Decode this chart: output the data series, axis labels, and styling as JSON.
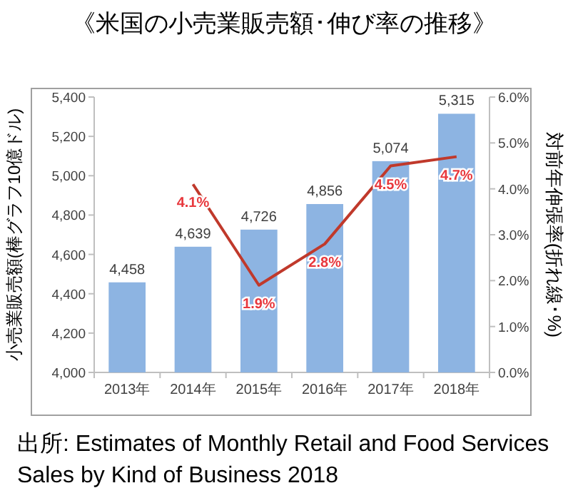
{
  "chart_data": {
    "type": "bar",
    "title": "《米国の小売業販売額･伸び率の推移》",
    "ylabel": "小売業販売額(棒グラフ10億ドル)",
    "y2label": "対前年伸張率(折れ線･%)",
    "categories": [
      "2013年",
      "2014年",
      "2015年",
      "2016年",
      "2017年",
      "2018年"
    ],
    "series": [
      {
        "color": "#8db4e2",
        "values": [
          4458,
          4639,
          4726,
          4856,
          5074,
          5315
        ],
        "value_labels": [
          "4,458",
          "4,639",
          "4,726",
          "4,856",
          "5,074",
          "5,315"
        ]
      },
      {
        "type": "line",
        "axis": "y2",
        "color": "#c0392b",
        "values": [
          null,
          4.1,
          1.9,
          2.8,
          4.5,
          4.7
        ],
        "value_labels": [
          null,
          "4.1%",
          "1.9%",
          "2.8%",
          "4.5%",
          "4.7%"
        ]
      }
    ],
    "ylim": [
      4000,
      5400
    ],
    "yticks": [
      {
        "value": 4000,
        "label": "4,000"
      },
      {
        "value": 4200,
        "label": "4,200"
      },
      {
        "value": 4400,
        "label": "4,400"
      },
      {
        "value": 4600,
        "label": "4,600"
      },
      {
        "value": 4800,
        "label": "4,800"
      },
      {
        "value": 5000,
        "label": "5,000"
      },
      {
        "value": 5200,
        "label": "5,200"
      },
      {
        "value": 5400,
        "label": "5,400"
      }
    ],
    "y2lim": [
      0,
      6
    ],
    "y2ticks": [
      {
        "value": 0,
        "label": "0.0%"
      },
      {
        "value": 1,
        "label": "1.0%"
      },
      {
        "value": 2,
        "label": "2.0%"
      },
      {
        "value": 3,
        "label": "3.0%"
      },
      {
        "value": 4,
        "label": "4.0%"
      },
      {
        "value": 5,
        "label": "5.0%"
      },
      {
        "value": 6,
        "label": "6.0%"
      }
    ],
    "annotations": [
      "出所: Estimates of Monthly Retail and Food Services Sales by Kind of Business 2018"
    ]
  }
}
